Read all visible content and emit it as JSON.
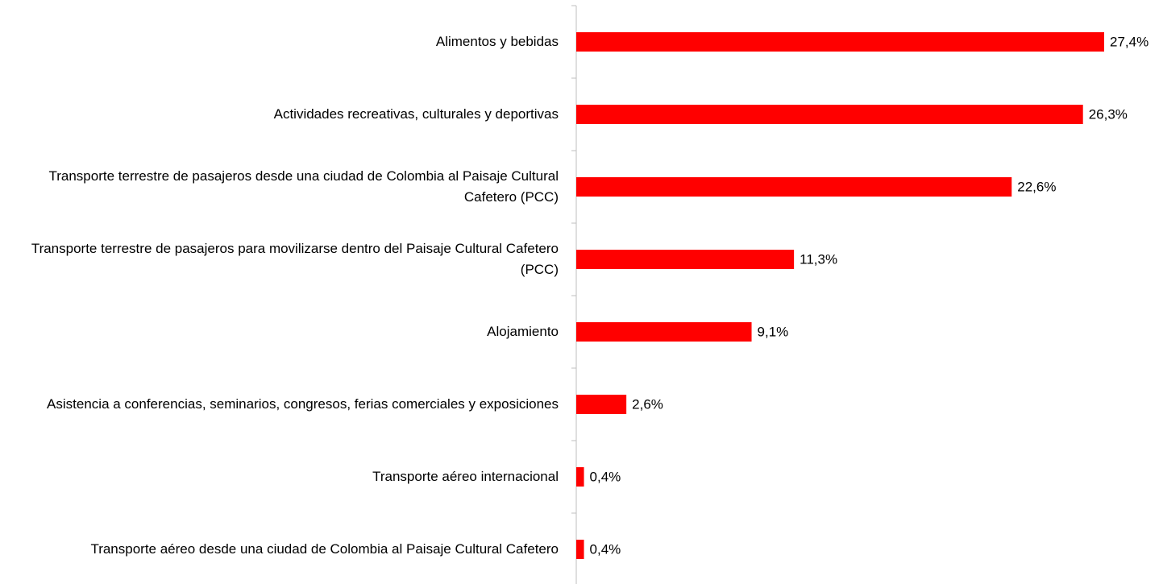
{
  "chart_data": {
    "type": "barh",
    "categories": [
      "Alimentos y bebidas",
      "Actividades recreativas, culturales y deportivas",
      "Transporte terrestre de pasajeros desde una ciudad de Colombia al Paisaje Cultural Cafetero (PCC)",
      "Transporte terrestre de pasajeros para movilizarse dentro del Paisaje Cultural Cafetero (PCC)",
      "Alojamiento",
      "Asistencia a conferencias, seminarios, congresos, ferias comerciales y exposiciones",
      "Transporte aéreo internacional",
      "Transporte aéreo desde una ciudad de Colombia al Paisaje Cultural Cafetero"
    ],
    "values": [
      27.4,
      26.3,
      22.6,
      11.3,
      9.1,
      2.6,
      0.4,
      0.4
    ],
    "value_labels": [
      "27,4%",
      "26,3%",
      "22,6%",
      "11,3%",
      "9,1%",
      "2,6%",
      "0,4%",
      "0,4%"
    ],
    "color": "#ff0000"
  }
}
